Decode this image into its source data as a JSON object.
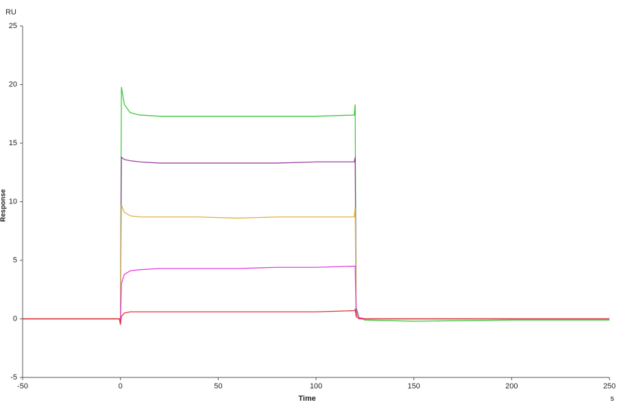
{
  "chart_data": {
    "type": "line",
    "y_unit": "RU",
    "y_label": "Response",
    "x_label": "Time",
    "x_unit": "s",
    "x": [
      -50,
      -10,
      -0.5,
      0,
      0.5,
      2,
      5,
      10,
      20,
      40,
      60,
      80,
      100,
      119.5,
      120,
      120.5,
      122,
      125,
      150,
      200,
      250
    ],
    "series": [
      {
        "name": "green",
        "color": "#3cc83c",
        "values": [
          0,
          0,
          0,
          -0.3,
          19.8,
          18.3,
          17.6,
          17.4,
          17.3,
          17.3,
          17.3,
          17.3,
          17.3,
          17.4,
          18.3,
          1.0,
          0.1,
          -0.1,
          -0.2,
          -0.1,
          -0.1
        ]
      },
      {
        "name": "purple",
        "color": "#9b3fa3",
        "values": [
          0,
          0,
          0,
          -0.3,
          13.8,
          13.6,
          13.5,
          13.4,
          13.3,
          13.3,
          13.3,
          13.3,
          13.4,
          13.4,
          13.8,
          0.8,
          0.1,
          0,
          0,
          0,
          0
        ]
      },
      {
        "name": "orange",
        "color": "#e0b040",
        "values": [
          0,
          0,
          0,
          -0.3,
          9.7,
          9.1,
          8.8,
          8.7,
          8.7,
          8.7,
          8.6,
          8.7,
          8.7,
          8.7,
          9.5,
          0.6,
          0.1,
          0,
          0,
          0,
          0
        ]
      },
      {
        "name": "magenta",
        "color": "#e23ce2",
        "values": [
          0,
          0,
          0,
          -0.4,
          3.0,
          3.8,
          4.1,
          4.2,
          4.3,
          4.3,
          4.3,
          4.4,
          4.4,
          4.5,
          4.5,
          0.4,
          0.1,
          0,
          0,
          0,
          0
        ]
      },
      {
        "name": "red",
        "color": "#e03030",
        "values": [
          0,
          0,
          0,
          -0.5,
          0.2,
          0.5,
          0.6,
          0.6,
          0.6,
          0.6,
          0.6,
          0.6,
          0.6,
          0.7,
          0.8,
          0.2,
          0,
          0,
          0,
          0,
          0
        ]
      }
    ],
    "xlim": [
      -50,
      250
    ],
    "xticks": [
      -50,
      0,
      50,
      100,
      150,
      200,
      250
    ],
    "ylim": [
      -5,
      25
    ],
    "yticks": [
      -5,
      0,
      5,
      10,
      15,
      20,
      25
    ],
    "grid": false
  }
}
